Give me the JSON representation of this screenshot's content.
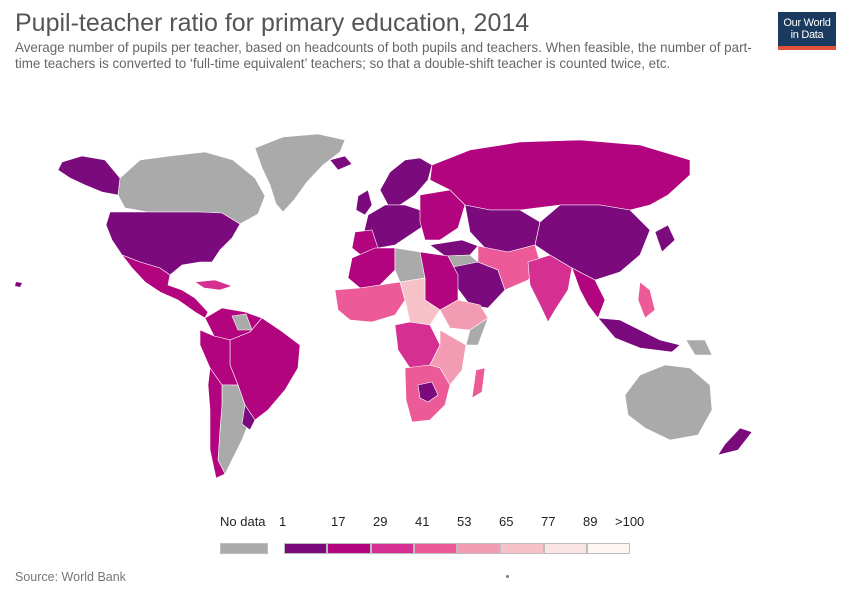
{
  "header": {
    "title": "Pupil-teacher ratio for primary education, 2014",
    "subtitle": "Average number of pupils per teacher, based on headcounts of both pupils and teachers. When feasible, the number of part-time teachers is converted to ‘full-time equivalent’ teachers; so that a double-shift teacher is counted twice, etc."
  },
  "logo": {
    "line1": "Our World",
    "line2": "in Data"
  },
  "legend": {
    "no_data_label": "No data",
    "no_data_color": "#aaaaaa",
    "ticks": [
      "1",
      "17",
      "29",
      "41",
      "53",
      "65",
      "77",
      "89",
      ">100"
    ],
    "bins": [
      {
        "color": "#7b0a7d"
      },
      {
        "color": "#b2047f"
      },
      {
        "color": "#d62f92"
      },
      {
        "color": "#ec5a97"
      },
      {
        "color": "#f39bb3"
      },
      {
        "color": "#f8c3c8"
      },
      {
        "color": "#fbe4e4"
      },
      {
        "color": "#fff6f2"
      }
    ]
  },
  "footer": {
    "source": "Source: World Bank"
  }
}
